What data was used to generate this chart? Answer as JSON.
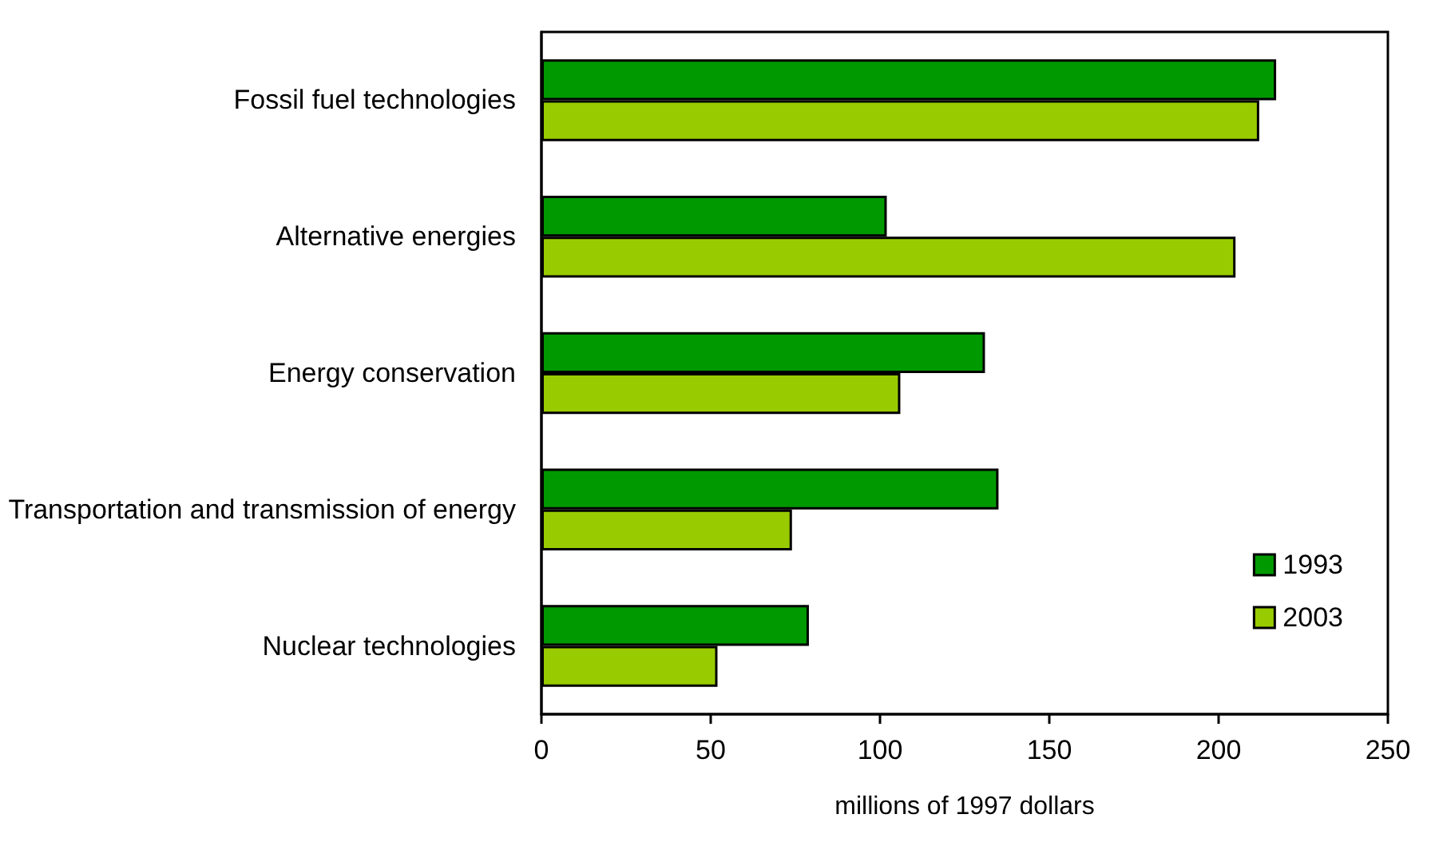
{
  "chart_data": {
    "type": "bar",
    "orientation": "horizontal",
    "categories": [
      "Fossil fuel technologies",
      "Alternative energies",
      "Energy conservation",
      "Transportation and transmission of energy",
      "Nuclear technologies"
    ],
    "series": [
      {
        "name": "1993",
        "color": "#009900",
        "values": [
          217,
          102,
          131,
          135,
          79
        ]
      },
      {
        "name": "2003",
        "color": "#99cc00",
        "values": [
          212,
          205,
          106,
          74,
          52
        ]
      }
    ],
    "xlabel": "millions of 1997 dollars",
    "xlim": [
      0,
      250
    ],
    "xticks": [
      0,
      50,
      100,
      150,
      200,
      250
    ],
    "grid": false,
    "legend": "bottom right"
  }
}
